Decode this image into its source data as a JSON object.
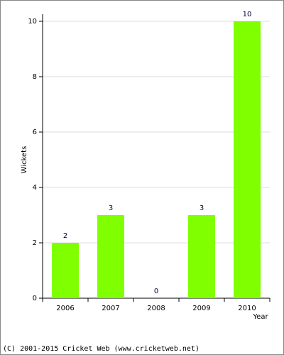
{
  "chart_data": {
    "type": "bar",
    "x_label": "Year",
    "y_label": "Wickets",
    "categories": [
      "2006",
      "2007",
      "2008",
      "2009",
      "2010"
    ],
    "values": [
      2,
      3,
      0,
      3,
      10
    ],
    "color": "#80ff00",
    "label_color": "#000033",
    "ylim": [
      0,
      10
    ],
    "yticks": [
      0,
      2,
      4,
      6,
      8,
      10
    ],
    "grid": true
  },
  "footer": "(C) 2001-2015 Cricket Web (www.cricketweb.net)"
}
